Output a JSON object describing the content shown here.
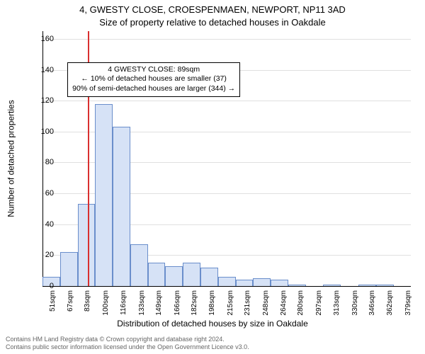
{
  "chart": {
    "type": "histogram",
    "title_line1": "4, GWESTY CLOSE, CROESPENMAEN, NEWPORT, NP11 3AD",
    "title_line2": "Size of property relative to detached houses in Oakdale",
    "title_fontsize": 13,
    "ylabel": "Number of detached properties",
    "xlabel": "Distribution of detached houses by size in Oakdale",
    "label_fontsize": 12,
    "background_color": "#ffffff",
    "grid_color": "#e0e0e0",
    "axis_color": "#000000",
    "bar_fill": "#d6e2f6",
    "bar_stroke": "#6a8ecb",
    "marker_color": "#d93030",
    "ylim": [
      0,
      165
    ],
    "yticks": [
      0,
      20,
      40,
      60,
      80,
      100,
      120,
      140,
      160
    ],
    "xlim_sqm": [
      47,
      387
    ],
    "xticks_sqm": [
      51,
      67,
      83,
      100,
      116,
      133,
      149,
      166,
      182,
      198,
      215,
      231,
      248,
      264,
      280,
      297,
      313,
      330,
      346,
      362,
      379
    ],
    "xtick_suffix": "sqm",
    "bin_width_sqm": 16.19,
    "bins_start_sqm": [
      47,
      63.2,
      79.4,
      95.6,
      111.8,
      128,
      144.2,
      160.4,
      176.6,
      192.8,
      209,
      225.2,
      241.4,
      257.6,
      273.8,
      290,
      306.2,
      322.4,
      338.6,
      354.8,
      371
    ],
    "bin_values": [
      6,
      22,
      53,
      118,
      103,
      27,
      15,
      13,
      15,
      12,
      6,
      4,
      5,
      4,
      1,
      0,
      1,
      0,
      1,
      1,
      0
    ],
    "marker_sqm": 89,
    "annotation": {
      "line1": "4 GWESTY CLOSE: 89sqm",
      "line2": "← 10% of detached houses are smaller (37)",
      "line3": "90% of semi-detached houses are larger (344) →",
      "border_color": "#000000",
      "bg_color": "#ffffff",
      "fontsize": 10.5
    }
  },
  "footer": {
    "line1": "Contains HM Land Registry data © Crown copyright and database right 2024.",
    "line2": "Contains public sector information licensed under the Open Government Licence v3.0.",
    "color": "#666666",
    "fontsize": 9
  }
}
